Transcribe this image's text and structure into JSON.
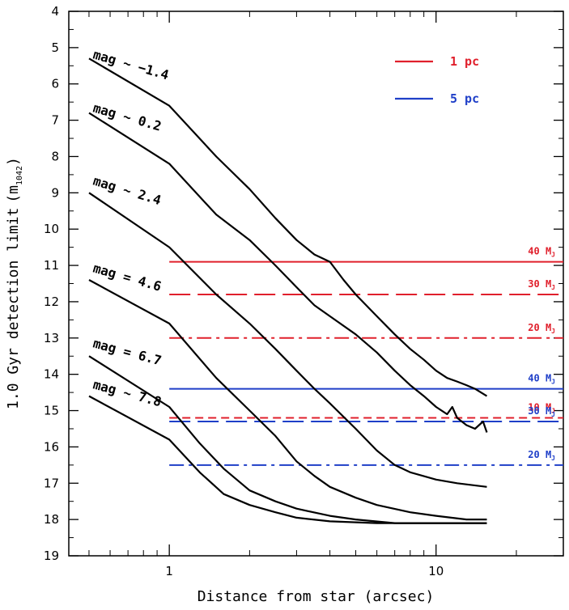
{
  "chart_data": {
    "type": "line",
    "xlabel": "Distance from star (arcsec)",
    "ylabel": "1.0 Gyr detection limit",
    "ylabel_sub": "1042",
    "x_scale": "log",
    "xlim": [
      0.42,
      30
    ],
    "ylim": [
      19,
      4
    ],
    "y_inverted": true,
    "x_ticks": [
      {
        "value": 1,
        "label": "1"
      },
      {
        "value": 10,
        "label": "10"
      }
    ],
    "y_ticks": [
      4,
      5,
      6,
      7,
      8,
      9,
      10,
      11,
      12,
      13,
      14,
      15,
      16,
      17,
      18,
      19
    ],
    "legend": {
      "placement": "top-right",
      "entries": [
        {
          "label": "1 pc",
          "color": "#e0202c"
        },
        {
          "label": "5 pc",
          "color": "#1f3fc8"
        }
      ]
    },
    "series": [
      {
        "label": "mag ~ −1.4",
        "color": "#000000",
        "points": [
          [
            0.5,
            5.3
          ],
          [
            1.0,
            6.6
          ],
          [
            1.5,
            8.0
          ],
          [
            2.0,
            8.9
          ],
          [
            2.5,
            9.7
          ],
          [
            3.0,
            10.3
          ],
          [
            3.5,
            10.7
          ],
          [
            4.0,
            10.9
          ],
          [
            4.5,
            11.4
          ],
          [
            5.0,
            11.8
          ],
          [
            6.0,
            12.4
          ],
          [
            7.0,
            12.9
          ],
          [
            8.0,
            13.3
          ],
          [
            9.0,
            13.6
          ],
          [
            10.0,
            13.9
          ],
          [
            11.0,
            14.1
          ],
          [
            12.0,
            14.2
          ],
          [
            13.0,
            14.3
          ],
          [
            14.0,
            14.4
          ],
          [
            15.5,
            14.6
          ]
        ]
      },
      {
        "label": "mag ~ 0.2",
        "color": "#000000",
        "points": [
          [
            0.5,
            6.8
          ],
          [
            1.0,
            8.2
          ],
          [
            1.5,
            9.6
          ],
          [
            2.0,
            10.3
          ],
          [
            2.5,
            11.0
          ],
          [
            3.0,
            11.6
          ],
          [
            3.5,
            12.1
          ],
          [
            4.0,
            12.4
          ],
          [
            5.0,
            12.9
          ],
          [
            6.0,
            13.4
          ],
          [
            7.0,
            13.9
          ],
          [
            8.0,
            14.3
          ],
          [
            9.0,
            14.6
          ],
          [
            10.0,
            14.9
          ],
          [
            11.0,
            15.1
          ],
          [
            11.5,
            14.9
          ],
          [
            12.0,
            15.2
          ],
          [
            13.0,
            15.4
          ],
          [
            14.0,
            15.5
          ],
          [
            15.0,
            15.3
          ],
          [
            15.5,
            15.6
          ]
        ]
      },
      {
        "label": "mag ~ 2.4",
        "color": "#000000",
        "points": [
          [
            0.5,
            9.0
          ],
          [
            1.0,
            10.5
          ],
          [
            1.5,
            11.8
          ],
          [
            2.0,
            12.6
          ],
          [
            2.5,
            13.3
          ],
          [
            3.0,
            13.9
          ],
          [
            3.5,
            14.4
          ],
          [
            4.0,
            14.8
          ],
          [
            5.0,
            15.5
          ],
          [
            6.0,
            16.1
          ],
          [
            7.0,
            16.5
          ],
          [
            8.0,
            16.7
          ],
          [
            10.0,
            16.9
          ],
          [
            12.0,
            17.0
          ],
          [
            15.5,
            17.1
          ]
        ]
      },
      {
        "label": "mag = 4.6",
        "color": "#000000",
        "points": [
          [
            0.5,
            11.4
          ],
          [
            1.0,
            12.6
          ],
          [
            1.5,
            14.1
          ],
          [
            2.0,
            15.0
          ],
          [
            2.5,
            15.7
          ],
          [
            3.0,
            16.4
          ],
          [
            3.5,
            16.8
          ],
          [
            4.0,
            17.1
          ],
          [
            5.0,
            17.4
          ],
          [
            6.0,
            17.6
          ],
          [
            8.0,
            17.8
          ],
          [
            10.0,
            17.9
          ],
          [
            13.0,
            18.0
          ],
          [
            15.5,
            18.0
          ]
        ]
      },
      {
        "label": "mag = 6.7",
        "color": "#000000",
        "points": [
          [
            0.5,
            13.5
          ],
          [
            1.0,
            14.9
          ],
          [
            1.3,
            15.9
          ],
          [
            1.6,
            16.6
          ],
          [
            2.0,
            17.2
          ],
          [
            2.5,
            17.5
          ],
          [
            3.0,
            17.7
          ],
          [
            4.0,
            17.9
          ],
          [
            5.0,
            18.0
          ],
          [
            7.0,
            18.1
          ],
          [
            10.0,
            18.1
          ],
          [
            15.5,
            18.1
          ]
        ]
      },
      {
        "label": "mag ~ 7.8",
        "color": "#000000",
        "points": [
          [
            0.5,
            14.6
          ],
          [
            1.0,
            15.8
          ],
          [
            1.3,
            16.7
          ],
          [
            1.6,
            17.3
          ],
          [
            2.0,
            17.6
          ],
          [
            2.5,
            17.8
          ],
          [
            3.0,
            17.95
          ],
          [
            4.0,
            18.05
          ],
          [
            6.0,
            18.1
          ],
          [
            10.0,
            18.1
          ],
          [
            15.5,
            18.1
          ]
        ]
      }
    ],
    "reference_lines": [
      {
        "label": "40",
        "unit": "M",
        "unit_sub": "J",
        "value": 10.9,
        "x_start": 1.0,
        "group": "1 pc",
        "color": "#e0202c",
        "dash": "solid"
      },
      {
        "label": "30",
        "unit": "M",
        "unit_sub": "J",
        "value": 11.8,
        "x_start": 1.0,
        "group": "1 pc",
        "color": "#e0202c",
        "dash": "long"
      },
      {
        "label": "20",
        "unit": "M",
        "unit_sub": "J",
        "value": 13.0,
        "x_start": 1.0,
        "group": "1 pc",
        "color": "#e0202c",
        "dash": "dashdot"
      },
      {
        "label": "10",
        "unit": "M",
        "unit_sub": "J",
        "value": 15.2,
        "x_start": 1.0,
        "group": "1 pc",
        "color": "#e0202c",
        "dash": "short"
      },
      {
        "label": "40",
        "unit": "M",
        "unit_sub": "J",
        "value": 14.4,
        "x_start": 1.0,
        "group": "5 pc",
        "color": "#1f3fc8",
        "dash": "solid"
      },
      {
        "label": "30",
        "unit": "M",
        "unit_sub": "J",
        "value": 15.3,
        "x_start": 1.0,
        "group": "5 pc",
        "color": "#1f3fc8",
        "dash": "long"
      },
      {
        "label": "20",
        "unit": "M",
        "unit_sub": "J",
        "value": 16.5,
        "x_start": 1.0,
        "group": "5 pc",
        "color": "#1f3fc8",
        "dash": "dashdot"
      }
    ]
  }
}
